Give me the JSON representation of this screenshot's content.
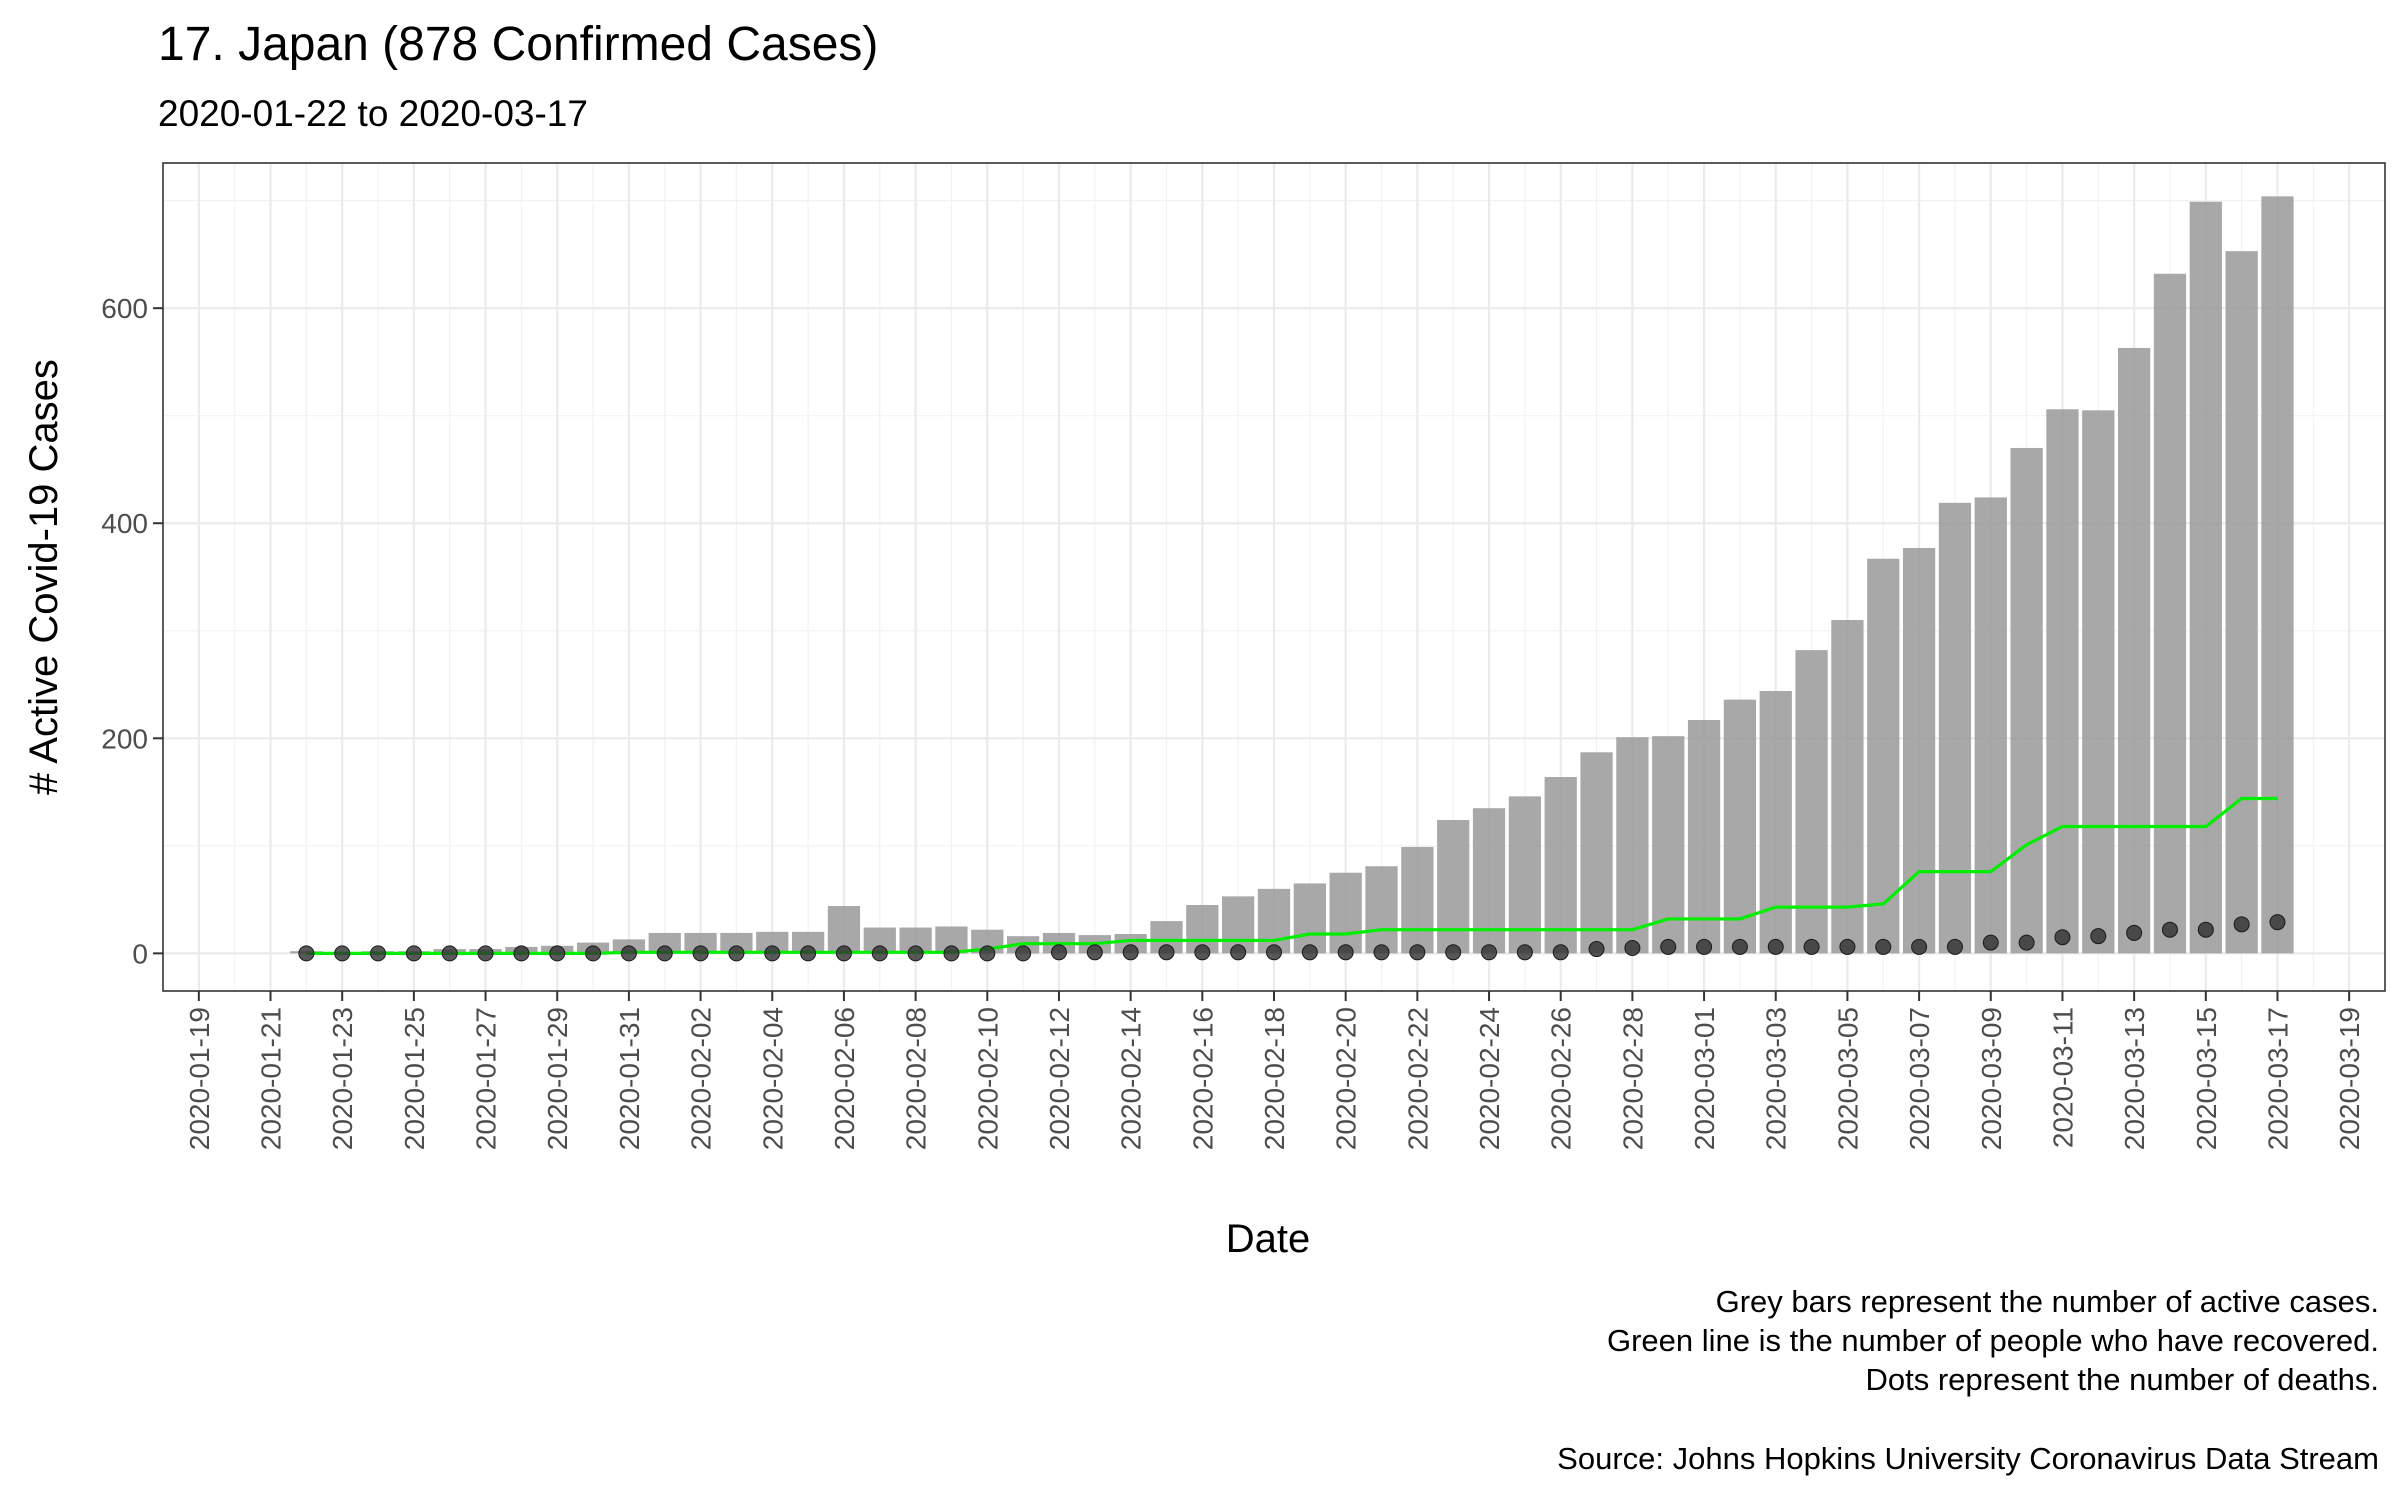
{
  "chart_data": {
    "type": "bar",
    "title": "17. Japan (878 Confirmed Cases)",
    "subtitle": "2020-01-22 to 2020-03-17",
    "xlabel": "Date",
    "ylabel": "# Active Covid-19 Cases",
    "x_ticks": [
      "2020-01-19",
      "2020-01-21",
      "2020-01-23",
      "2020-01-25",
      "2020-01-27",
      "2020-01-29",
      "2020-01-31",
      "2020-02-02",
      "2020-02-04",
      "2020-02-06",
      "2020-02-08",
      "2020-02-10",
      "2020-02-12",
      "2020-02-14",
      "2020-02-16",
      "2020-02-18",
      "2020-02-20",
      "2020-02-22",
      "2020-02-24",
      "2020-02-26",
      "2020-02-28",
      "2020-03-01",
      "2020-03-03",
      "2020-03-05",
      "2020-03-07",
      "2020-03-09",
      "2020-03-11",
      "2020-03-13",
      "2020-03-15",
      "2020-03-17",
      "2020-03-19"
    ],
    "y_ticks": [
      0,
      200,
      400,
      600
    ],
    "xlim": [
      "2020-01-18",
      "2020-03-20"
    ],
    "ylim": [
      -35,
      735
    ],
    "grid": true,
    "dates": [
      "2020-01-22",
      "2020-01-23",
      "2020-01-24",
      "2020-01-25",
      "2020-01-26",
      "2020-01-27",
      "2020-01-28",
      "2020-01-29",
      "2020-01-30",
      "2020-01-31",
      "2020-02-01",
      "2020-02-02",
      "2020-02-03",
      "2020-02-04",
      "2020-02-05",
      "2020-02-06",
      "2020-02-07",
      "2020-02-08",
      "2020-02-09",
      "2020-02-10",
      "2020-02-11",
      "2020-02-12",
      "2020-02-13",
      "2020-02-14",
      "2020-02-15",
      "2020-02-16",
      "2020-02-17",
      "2020-02-18",
      "2020-02-19",
      "2020-02-20",
      "2020-02-21",
      "2020-02-22",
      "2020-02-23",
      "2020-02-24",
      "2020-02-25",
      "2020-02-26",
      "2020-02-27",
      "2020-02-28",
      "2020-02-29",
      "2020-03-01",
      "2020-03-02",
      "2020-03-03",
      "2020-03-04",
      "2020-03-05",
      "2020-03-06",
      "2020-03-07",
      "2020-03-08",
      "2020-03-09",
      "2020-03-10",
      "2020-03-11",
      "2020-03-12",
      "2020-03-13",
      "2020-03-14",
      "2020-03-15",
      "2020-03-16",
      "2020-03-17"
    ],
    "series": [
      {
        "name": "Active cases",
        "mark": "bar",
        "color": "#999999",
        "values": [
          2,
          1,
          2,
          2,
          4,
          4,
          6,
          7,
          10,
          13,
          19,
          19,
          19,
          20,
          20,
          44,
          24,
          24,
          25,
          22,
          16,
          19,
          17,
          18,
          30,
          45,
          53,
          60,
          65,
          75,
          81,
          99,
          124,
          135,
          146,
          164,
          187,
          201,
          202,
          217,
          236,
          244,
          282,
          310,
          367,
          377,
          419,
          424,
          470,
          506,
          505,
          563,
          632,
          699,
          653,
          704
        ]
      },
      {
        "name": "Recovered",
        "mark": "line",
        "color": "#00ee00",
        "values": [
          0,
          0,
          0,
          0,
          0,
          0,
          0,
          0,
          0,
          1,
          1,
          1,
          1,
          1,
          1,
          1,
          1,
          1,
          1,
          4,
          9,
          9,
          9,
          12,
          12,
          12,
          12,
          12,
          18,
          18,
          22,
          22,
          22,
          22,
          22,
          22,
          22,
          22,
          32,
          32,
          32,
          43,
          43,
          43,
          46,
          76,
          76,
          76,
          101,
          118,
          118,
          118,
          118,
          118,
          144,
          144
        ]
      },
      {
        "name": "Deaths",
        "mark": "point",
        "color": "#333333",
        "values": [
          0,
          0,
          0,
          0,
          0,
          0,
          0,
          0,
          0,
          0,
          0,
          0,
          0,
          0,
          0,
          0,
          0,
          0,
          0,
          0,
          0,
          1,
          1,
          1,
          1,
          1,
          1,
          1,
          1,
          1,
          1,
          1,
          1,
          1,
          1,
          1,
          4,
          5,
          6,
          6,
          6,
          6,
          6,
          6,
          6,
          6,
          6,
          10,
          10,
          15,
          16,
          19,
          22,
          22,
          27,
          29
        ]
      }
    ]
  },
  "caption_lines": [
    "Grey bars represent the number of active cases.",
    "Green line is the number of people who have recovered.",
    "Dots represent the number of deaths."
  ],
  "source": "Source: Johns Hopkins University Coronavirus Data Stream"
}
